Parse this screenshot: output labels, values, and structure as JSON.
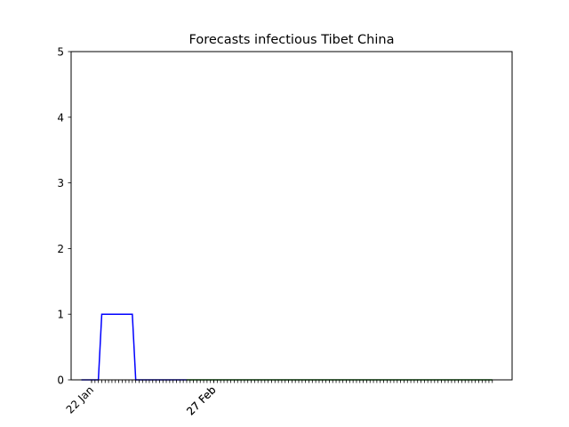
{
  "chart_data": {
    "type": "line",
    "title": "Forecasts infectious Tibet China",
    "xlabel": "",
    "ylabel": "",
    "x_start": "2020-01-22",
    "x_tick_labels": [
      "22 Jan",
      "27 Feb",
      "27 Feb"
    ],
    "x_tick_label_dates": [
      "2020-01-22",
      "2020-02-27",
      "2020-02-27"
    ],
    "y_ticks": [
      0,
      1,
      2,
      3,
      4,
      5
    ],
    "ylim": [
      0,
      5
    ],
    "grid": false,
    "series": [
      {
        "color": "#0000ff",
        "x": [
          "2020-01-19",
          "2020-01-24",
          "2020-01-25",
          "2020-02-03",
          "2020-02-04",
          "2020-02-19"
        ],
        "values": [
          0,
          0,
          1,
          1,
          0,
          0
        ]
      },
      {
        "color": "#008000",
        "x": [
          "2020-02-19",
          "2020-05-19"
        ],
        "values": [
          0,
          0
        ]
      }
    ]
  }
}
